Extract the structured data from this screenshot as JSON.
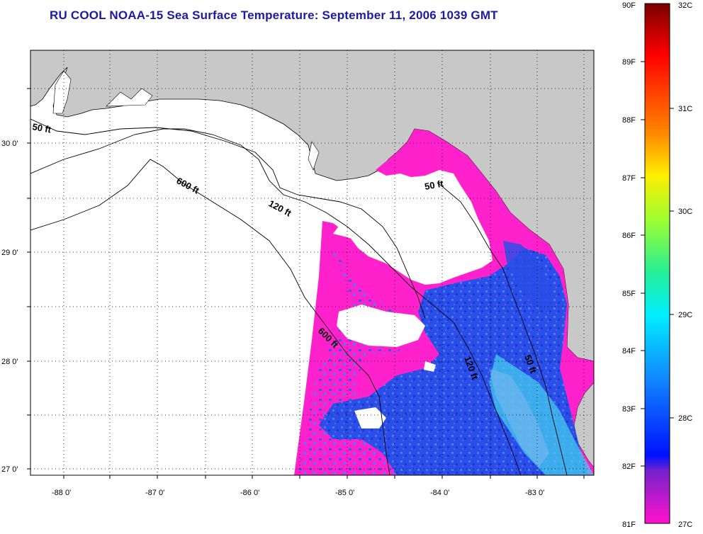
{
  "title": "RU COOL  NOAA-15  Sea Surface Temperature:  September 11, 2006 1039 GMT",
  "lat_labels": [
    "30 0'",
    "29 0'",
    "28 0'",
    "27 0'"
  ],
  "lon_labels": [
    "-88 0'",
    "-87 0'",
    "-86 0'",
    "-85 0'",
    "-84 0'",
    "-83 0'"
  ],
  "contours": [
    {
      "label": "50 ft"
    },
    {
      "label": "600 ft"
    },
    {
      "label": "120 ft"
    },
    {
      "label": "50 ft"
    },
    {
      "label": "600 ft"
    },
    {
      "label": "120 ft"
    },
    {
      "label": "50 ft"
    }
  ],
  "colorbar": {
    "fahrenheit": [
      "90F",
      "89F",
      "88F",
      "87F",
      "86F",
      "85F",
      "84F",
      "83F",
      "82F",
      "81F"
    ],
    "celsius": [
      "32C",
      "31C",
      "30C",
      "29C",
      "28C",
      "27C"
    ]
  },
  "colors": {
    "land": "#c8c8c8",
    "ocean_nodata": "#ffffff",
    "sst_warm_patch": "#ff22cc",
    "sst_cool_patch": "#2244ee",
    "sst_cyan": "#44ccee",
    "title": "#1a1aa6"
  }
}
